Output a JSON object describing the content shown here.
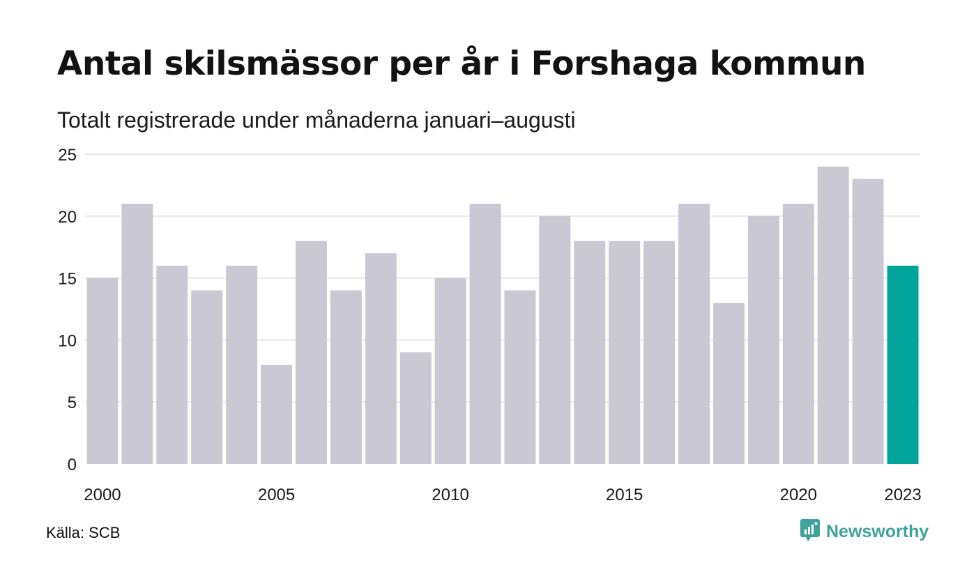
{
  "header": {
    "title": "Antal skilsmässor per år i Forshaga kommun",
    "subtitle": "Totalt registrerade under månaderna januari–augusti"
  },
  "footer": {
    "source": "Källa: SCB",
    "brand": "Newsworthy",
    "brand_icon": "newsworthy-logo-icon"
  },
  "colors": {
    "bar": "#c9c8d3",
    "highlight": "#00a49a",
    "grid": "#e6e6e6",
    "brand": "#3fa39a"
  },
  "chart_data": {
    "type": "bar",
    "title": "Antal skilsmässor per år i Forshaga kommun",
    "subtitle": "Totalt registrerade under månaderna januari–augusti",
    "categories": [
      "2000",
      "2001",
      "2002",
      "2003",
      "2004",
      "2005",
      "2006",
      "2007",
      "2008",
      "2009",
      "2010",
      "2011",
      "2012",
      "2013",
      "2014",
      "2015",
      "2016",
      "2017",
      "2018",
      "2019",
      "2020",
      "2021",
      "2022",
      "2023"
    ],
    "values": [
      15,
      21,
      16,
      14,
      16,
      8,
      18,
      14,
      17,
      9,
      15,
      21,
      14,
      20,
      18,
      18,
      18,
      21,
      13,
      20,
      21,
      24,
      23,
      16
    ],
    "highlight_category": "2023",
    "x_tick_labels": [
      "2000",
      "2005",
      "2010",
      "2015",
      "2020",
      "2023"
    ],
    "y_ticks": [
      0,
      5,
      10,
      15,
      20,
      25
    ],
    "ylim": [
      0,
      25
    ],
    "xlabel": "",
    "ylabel": "",
    "grid": true,
    "legend": "none"
  }
}
